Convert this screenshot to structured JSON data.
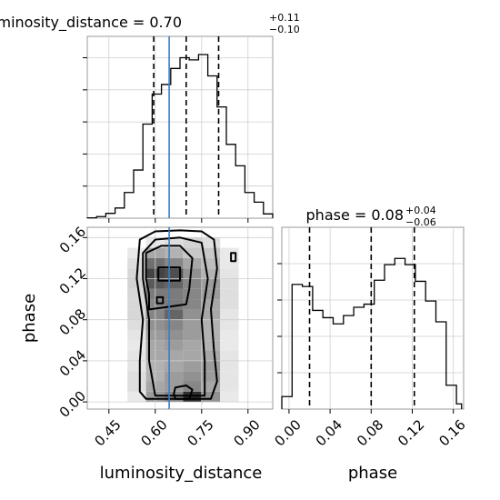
{
  "chart_data": {
    "type": "corner",
    "truth_color": "#3a7ebf",
    "parameters": [
      {
        "name": "luminosity_distance",
        "label": "luminosity_distance",
        "range": [
          0.38,
          0.98
        ],
        "ticks": [
          0.45,
          0.6,
          0.75,
          0.9
        ],
        "tick_labels": [
          "0.45",
          "0.60",
          "0.75",
          "0.90"
        ],
        "truth": 0.645,
        "title": {
          "text": "luminosity_distance = 0.70",
          "plus": "+0.11",
          "minus": "−0.10"
        },
        "quantiles": [
          0.595,
          0.7,
          0.805
        ],
        "hist": {
          "edges": [
            0.38,
            0.41,
            0.44,
            0.47,
            0.5,
            0.53,
            0.56,
            0.59,
            0.62,
            0.65,
            0.68,
            0.71,
            0.74,
            0.77,
            0.8,
            0.83,
            0.86,
            0.89,
            0.92,
            0.95,
            0.98
          ],
          "counts": [
            0.3,
            1.5,
            4.5,
            9.5,
            24,
            45,
            88,
            116,
            125,
            140,
            150,
            148,
            153,
            133,
            104,
            69,
            49,
            24,
            15,
            4
          ]
        }
      },
      {
        "name": "phase",
        "label": "phase",
        "range": [
          -0.007,
          0.17
        ],
        "ticks": [
          0.0,
          0.04,
          0.08,
          0.12,
          0.16
        ],
        "tick_labels": [
          "0.00",
          "0.04",
          "0.08",
          "0.12",
          "0.16"
        ],
        "title": {
          "text": "phase = 0.08",
          "plus": "+0.04",
          "minus": "−0.06"
        },
        "quantiles": [
          0.02,
          0.08,
          0.122
        ],
        "hist": {
          "edges": [
            -0.007,
            -0.002,
            0.003,
            0.008,
            0.013,
            0.018,
            0.023,
            0.028,
            0.033,
            0.038,
            0.043,
            0.048,
            0.053,
            0.058,
            0.063,
            0.068,
            0.073,
            0.078,
            0.083,
            0.088,
            0.093,
            0.098,
            0.103,
            0.108,
            0.113,
            0.118,
            0.123,
            0.128,
            0.133,
            0.138,
            0.143,
            0.148,
            0.153,
            0.158,
            0.163,
            0.168
          ],
          "counts": [
            12,
            12,
            120,
            120,
            118,
            118,
            95,
            95,
            88,
            88,
            82,
            82,
            90,
            90,
            98,
            98,
            101,
            101,
            124,
            124,
            139,
            139,
            145,
            145,
            139,
            139,
            123,
            123,
            104,
            104,
            84,
            84,
            23,
            23,
            5
          ]
        }
      }
    ],
    "density": {
      "xgrid": [
        0.42,
        0.48,
        0.54,
        0.6,
        0.66,
        0.72,
        0.78,
        0.84,
        0.9,
        0.96
      ],
      "ygrid": [
        0.005,
        0.015,
        0.025,
        0.035,
        0.045,
        0.055,
        0.065,
        0.075,
        0.085,
        0.095,
        0.105,
        0.115,
        0.125,
        0.135,
        0.145,
        0.155
      ],
      "z": [
        [
          0.0,
          0.02,
          0.1,
          0.45,
          0.55,
          0.95,
          0.5,
          0.1,
          0.02,
          0.0
        ],
        [
          0.0,
          0.03,
          0.15,
          0.4,
          0.45,
          0.55,
          0.4,
          0.12,
          0.02,
          0.0
        ],
        [
          0.0,
          0.03,
          0.15,
          0.35,
          0.45,
          0.5,
          0.45,
          0.12,
          0.02,
          0.0
        ],
        [
          0.0,
          0.02,
          0.12,
          0.35,
          0.4,
          0.45,
          0.45,
          0.12,
          0.02,
          0.0
        ],
        [
          0.0,
          0.02,
          0.12,
          0.4,
          0.4,
          0.4,
          0.4,
          0.12,
          0.02,
          0.0
        ],
        [
          0.0,
          0.02,
          0.1,
          0.4,
          0.45,
          0.4,
          0.35,
          0.1,
          0.02,
          0.0
        ],
        [
          0.0,
          0.02,
          0.12,
          0.45,
          0.5,
          0.45,
          0.35,
          0.1,
          0.02,
          0.0
        ],
        [
          0.0,
          0.03,
          0.15,
          0.5,
          0.55,
          0.45,
          0.35,
          0.12,
          0.02,
          0.0
        ],
        [
          0.0,
          0.03,
          0.18,
          0.55,
          0.7,
          0.5,
          0.4,
          0.12,
          0.02,
          0.0
        ],
        [
          0.0,
          0.03,
          0.18,
          0.55,
          0.6,
          0.55,
          0.4,
          0.15,
          0.02,
          0.0
        ],
        [
          0.0,
          0.03,
          0.18,
          0.6,
          0.6,
          0.55,
          0.45,
          0.15,
          0.02,
          0.0
        ],
        [
          0.0,
          0.03,
          0.2,
          0.75,
          0.7,
          0.55,
          0.45,
          0.15,
          0.02,
          0.0
        ],
        [
          0.0,
          0.03,
          0.18,
          0.85,
          0.8,
          0.5,
          0.35,
          0.12,
          0.02,
          0.0
        ],
        [
          0.0,
          0.02,
          0.15,
          0.65,
          0.55,
          0.4,
          0.3,
          0.1,
          0.02,
          0.0
        ],
        [
          0.0,
          0.02,
          0.1,
          0.4,
          0.35,
          0.25,
          0.25,
          0.1,
          0.02,
          0.0
        ],
        [
          0.0,
          0.0,
          0.05,
          0.1,
          0.15,
          0.2,
          0.15,
          0.05,
          0.0,
          0.0
        ]
      ],
      "contours": [
        [
          [
            0.57,
            0.003
          ],
          [
            0.78,
            0.003
          ],
          [
            0.8,
            0.02
          ],
          [
            0.79,
            0.05
          ],
          [
            0.78,
            0.09
          ],
          [
            0.8,
            0.13
          ],
          [
            0.79,
            0.158
          ],
          [
            0.75,
            0.166
          ],
          [
            0.68,
            0.167
          ],
          [
            0.6,
            0.166
          ],
          [
            0.55,
            0.158
          ],
          [
            0.54,
            0.12
          ],
          [
            0.56,
            0.08
          ],
          [
            0.55,
            0.04
          ],
          [
            0.55,
            0.01
          ]
        ],
        [
          [
            0.6,
            0.006
          ],
          [
            0.76,
            0.006
          ],
          [
            0.76,
            0.04
          ],
          [
            0.75,
            0.08
          ],
          [
            0.77,
            0.12
          ],
          [
            0.75,
            0.155
          ],
          [
            0.68,
            0.16
          ],
          [
            0.6,
            0.158
          ],
          [
            0.56,
            0.145
          ],
          [
            0.56,
            0.12
          ],
          [
            0.58,
            0.08
          ],
          [
            0.58,
            0.04
          ]
        ],
        [
          [
            0.58,
            0.09
          ],
          [
            0.63,
            0.092
          ],
          [
            0.7,
            0.095
          ],
          [
            0.71,
            0.11
          ],
          [
            0.72,
            0.14
          ],
          [
            0.68,
            0.152
          ],
          [
            0.62,
            0.152
          ],
          [
            0.57,
            0.145
          ],
          [
            0.57,
            0.12
          ],
          [
            0.58,
            0.105
          ]
        ],
        [
          [
            0.61,
            0.118
          ],
          [
            0.68,
            0.118
          ],
          [
            0.68,
            0.131
          ],
          [
            0.61,
            0.131
          ]
        ],
        [
          [
            0.665,
            0.003
          ],
          [
            0.71,
            0.003
          ],
          [
            0.72,
            0.012
          ],
          [
            0.7,
            0.016
          ],
          [
            0.665,
            0.014
          ],
          [
            0.66,
            0.008
          ]
        ],
        [
          [
            0.605,
            0.096
          ],
          [
            0.625,
            0.096
          ],
          [
            0.625,
            0.102
          ],
          [
            0.605,
            0.102
          ]
        ],
        [
          [
            0.845,
            0.137
          ],
          [
            0.86,
            0.137
          ],
          [
            0.86,
            0.145
          ],
          [
            0.845,
            0.145
          ]
        ]
      ]
    },
    "grid": true
  }
}
